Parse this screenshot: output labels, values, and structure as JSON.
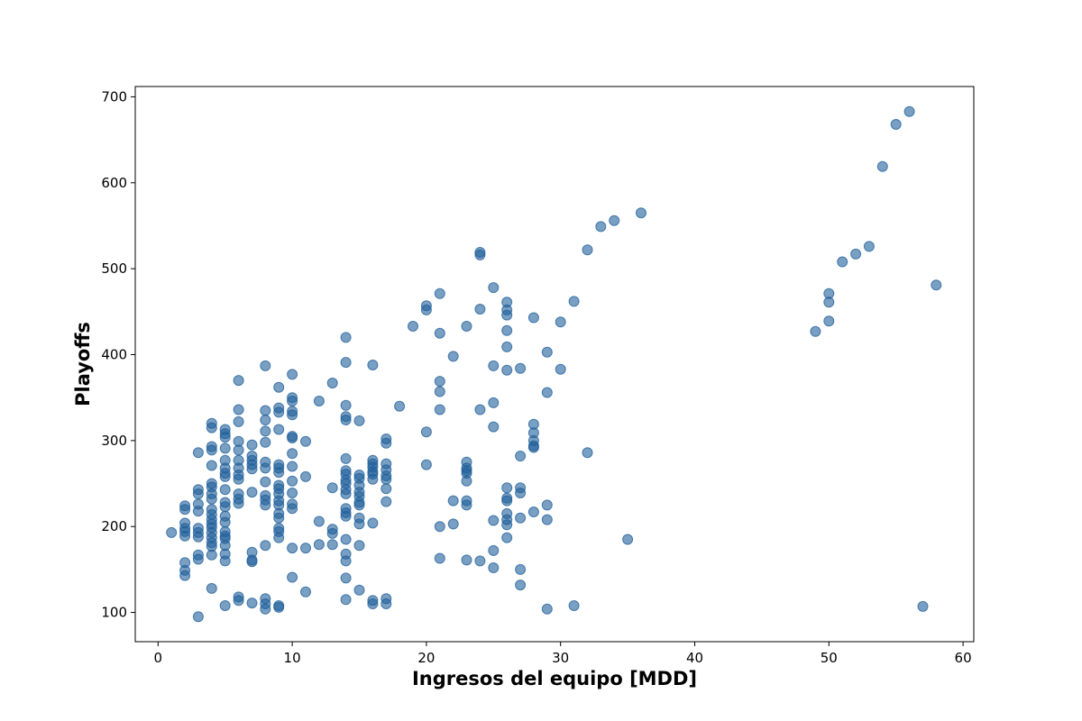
{
  "chart_data": {
    "type": "scatter",
    "xlabel": "Ingresos del equipo [MDD]",
    "ylabel": "Playoffs",
    "xlim": [
      -1.7,
      60.8
    ],
    "ylim": [
      66,
      712
    ],
    "x_ticks": [
      0,
      10,
      20,
      30,
      40,
      50,
      60
    ],
    "y_ticks": [
      100,
      200,
      300,
      400,
      500,
      600,
      700
    ],
    "grid": false,
    "legend": "none",
    "marker_color": "#1f5f99",
    "points": [
      [
        1,
        193
      ],
      [
        2,
        224
      ],
      [
        2,
        220
      ],
      [
        2,
        204
      ],
      [
        2,
        198
      ],
      [
        2,
        194
      ],
      [
        2,
        189
      ],
      [
        2,
        158
      ],
      [
        2,
        149
      ],
      [
        2,
        143
      ],
      [
        3,
        286
      ],
      [
        3,
        243
      ],
      [
        3,
        238
      ],
      [
        3,
        226
      ],
      [
        3,
        218
      ],
      [
        3,
        198
      ],
      [
        3,
        193
      ],
      [
        3,
        188
      ],
      [
        3,
        167
      ],
      [
        3,
        162
      ],
      [
        3,
        95
      ],
      [
        4,
        320
      ],
      [
        4,
        315
      ],
      [
        4,
        293
      ],
      [
        4,
        289
      ],
      [
        4,
        271
      ],
      [
        4,
        250
      ],
      [
        4,
        246
      ],
      [
        4,
        238
      ],
      [
        4,
        232
      ],
      [
        4,
        220
      ],
      [
        4,
        214
      ],
      [
        4,
        208
      ],
      [
        4,
        203
      ],
      [
        4,
        199
      ],
      [
        4,
        193
      ],
      [
        4,
        187
      ],
      [
        4,
        181
      ],
      [
        4,
        177
      ],
      [
        4,
        167
      ],
      [
        4,
        128
      ],
      [
        5,
        313
      ],
      [
        5,
        308
      ],
      [
        5,
        304
      ],
      [
        5,
        291
      ],
      [
        5,
        277
      ],
      [
        5,
        268
      ],
      [
        5,
        262
      ],
      [
        5,
        258
      ],
      [
        5,
        243
      ],
      [
        5,
        228
      ],
      [
        5,
        223
      ],
      [
        5,
        212
      ],
      [
        5,
        205
      ],
      [
        5,
        194
      ],
      [
        5,
        189
      ],
      [
        5,
        186
      ],
      [
        5,
        178
      ],
      [
        5,
        168
      ],
      [
        5,
        160
      ],
      [
        5,
        108
      ],
      [
        6,
        370
      ],
      [
        6,
        336
      ],
      [
        6,
        322
      ],
      [
        6,
        299
      ],
      [
        6,
        289
      ],
      [
        6,
        277
      ],
      [
        6,
        268
      ],
      [
        6,
        260
      ],
      [
        6,
        255
      ],
      [
        6,
        238
      ],
      [
        6,
        232
      ],
      [
        6,
        227
      ],
      [
        6,
        118
      ],
      [
        6,
        114
      ],
      [
        7,
        295
      ],
      [
        7,
        282
      ],
      [
        7,
        277
      ],
      [
        7,
        272
      ],
      [
        7,
        267
      ],
      [
        7,
        240
      ],
      [
        7,
        170
      ],
      [
        7,
        161
      ],
      [
        7,
        159
      ],
      [
        7,
        111
      ],
      [
        8,
        387
      ],
      [
        8,
        335
      ],
      [
        8,
        324
      ],
      [
        8,
        311
      ],
      [
        8,
        298
      ],
      [
        8,
        275
      ],
      [
        8,
        268
      ],
      [
        8,
        252
      ],
      [
        8,
        236
      ],
      [
        8,
        231
      ],
      [
        8,
        225
      ],
      [
        8,
        178
      ],
      [
        8,
        116
      ],
      [
        8,
        110
      ],
      [
        8,
        104
      ],
      [
        9,
        362
      ],
      [
        9,
        338
      ],
      [
        9,
        333
      ],
      [
        9,
        313
      ],
      [
        9,
        272
      ],
      [
        9,
        268
      ],
      [
        9,
        263
      ],
      [
        9,
        248
      ],
      [
        9,
        244
      ],
      [
        9,
        238
      ],
      [
        9,
        230
      ],
      [
        9,
        225
      ],
      [
        9,
        215
      ],
      [
        9,
        210
      ],
      [
        9,
        198
      ],
      [
        9,
        194
      ],
      [
        9,
        187
      ],
      [
        9,
        108
      ],
      [
        9,
        106
      ],
      [
        10,
        377
      ],
      [
        10,
        350
      ],
      [
        10,
        346
      ],
      [
        10,
        334
      ],
      [
        10,
        330
      ],
      [
        10,
        305
      ],
      [
        10,
        303
      ],
      [
        10,
        285
      ],
      [
        10,
        270
      ],
      [
        10,
        253
      ],
      [
        10,
        239
      ],
      [
        10,
        226
      ],
      [
        10,
        221
      ],
      [
        10,
        175
      ],
      [
        10,
        141
      ],
      [
        11,
        299
      ],
      [
        11,
        258
      ],
      [
        11,
        175
      ],
      [
        11,
        124
      ],
      [
        12,
        346
      ],
      [
        12,
        206
      ],
      [
        12,
        179
      ],
      [
        13,
        367
      ],
      [
        13,
        245
      ],
      [
        13,
        197
      ],
      [
        13,
        192
      ],
      [
        13,
        179
      ],
      [
        14,
        420
      ],
      [
        14,
        391
      ],
      [
        14,
        341
      ],
      [
        14,
        328
      ],
      [
        14,
        324
      ],
      [
        14,
        279
      ],
      [
        14,
        265
      ],
      [
        14,
        261
      ],
      [
        14,
        254
      ],
      [
        14,
        250
      ],
      [
        14,
        243
      ],
      [
        14,
        238
      ],
      [
        14,
        221
      ],
      [
        14,
        216
      ],
      [
        14,
        212
      ],
      [
        14,
        185
      ],
      [
        14,
        168
      ],
      [
        14,
        160
      ],
      [
        14,
        140
      ],
      [
        14,
        115
      ],
      [
        15,
        323
      ],
      [
        15,
        260
      ],
      [
        15,
        256
      ],
      [
        15,
        248
      ],
      [
        15,
        240
      ],
      [
        15,
        235
      ],
      [
        15,
        228
      ],
      [
        15,
        225
      ],
      [
        15,
        210
      ],
      [
        15,
        203
      ],
      [
        15,
        178
      ],
      [
        15,
        126
      ],
      [
        16,
        388
      ],
      [
        16,
        277
      ],
      [
        16,
        273
      ],
      [
        16,
        269
      ],
      [
        16,
        264
      ],
      [
        16,
        261
      ],
      [
        16,
        255
      ],
      [
        16,
        204
      ],
      [
        16,
        114
      ],
      [
        16,
        110
      ],
      [
        17,
        302
      ],
      [
        17,
        297
      ],
      [
        17,
        273
      ],
      [
        17,
        266
      ],
      [
        17,
        259
      ],
      [
        17,
        255
      ],
      [
        17,
        244
      ],
      [
        17,
        229
      ],
      [
        17,
        116
      ],
      [
        17,
        110
      ],
      [
        18,
        340
      ],
      [
        19,
        433
      ],
      [
        20,
        457
      ],
      [
        20,
        452
      ],
      [
        20,
        310
      ],
      [
        20,
        272
      ],
      [
        21,
        471
      ],
      [
        21,
        425
      ],
      [
        21,
        369
      ],
      [
        21,
        357
      ],
      [
        21,
        336
      ],
      [
        21,
        200
      ],
      [
        21,
        163
      ],
      [
        22,
        398
      ],
      [
        22,
        230
      ],
      [
        22,
        203
      ],
      [
        23,
        433
      ],
      [
        23,
        275
      ],
      [
        23,
        268
      ],
      [
        23,
        265
      ],
      [
        23,
        262
      ],
      [
        23,
        253
      ],
      [
        23,
        230
      ],
      [
        23,
        225
      ],
      [
        23,
        161
      ],
      [
        24,
        519
      ],
      [
        24,
        516
      ],
      [
        24,
        453
      ],
      [
        24,
        336
      ],
      [
        24,
        160
      ],
      [
        25,
        478
      ],
      [
        25,
        387
      ],
      [
        25,
        344
      ],
      [
        25,
        316
      ],
      [
        25,
        207
      ],
      [
        25,
        172
      ],
      [
        25,
        152
      ],
      [
        26,
        461
      ],
      [
        26,
        452
      ],
      [
        26,
        446
      ],
      [
        26,
        428
      ],
      [
        26,
        409
      ],
      [
        26,
        382
      ],
      [
        26,
        245
      ],
      [
        26,
        233
      ],
      [
        26,
        230
      ],
      [
        26,
        215
      ],
      [
        26,
        208
      ],
      [
        26,
        202
      ],
      [
        26,
        187
      ],
      [
        27,
        384
      ],
      [
        27,
        282
      ],
      [
        27,
        245
      ],
      [
        27,
        239
      ],
      [
        27,
        210
      ],
      [
        27,
        150
      ],
      [
        27,
        132
      ],
      [
        28,
        443
      ],
      [
        28,
        319
      ],
      [
        28,
        309
      ],
      [
        28,
        300
      ],
      [
        28,
        294
      ],
      [
        28,
        292
      ],
      [
        28,
        217
      ],
      [
        29,
        403
      ],
      [
        29,
        356
      ],
      [
        29,
        225
      ],
      [
        29,
        208
      ],
      [
        29,
        104
      ],
      [
        30,
        438
      ],
      [
        30,
        383
      ],
      [
        31,
        462
      ],
      [
        31,
        108
      ],
      [
        32,
        522
      ],
      [
        32,
        286
      ],
      [
        33,
        549
      ],
      [
        34,
        556
      ],
      [
        35,
        185
      ],
      [
        36,
        565
      ],
      [
        49,
        427
      ],
      [
        50,
        471
      ],
      [
        50,
        461
      ],
      [
        50,
        439
      ],
      [
        51,
        508
      ],
      [
        52,
        517
      ],
      [
        53,
        526
      ],
      [
        54,
        619
      ],
      [
        55,
        668
      ],
      [
        56,
        683
      ],
      [
        57,
        107
      ],
      [
        58,
        481
      ]
    ]
  }
}
